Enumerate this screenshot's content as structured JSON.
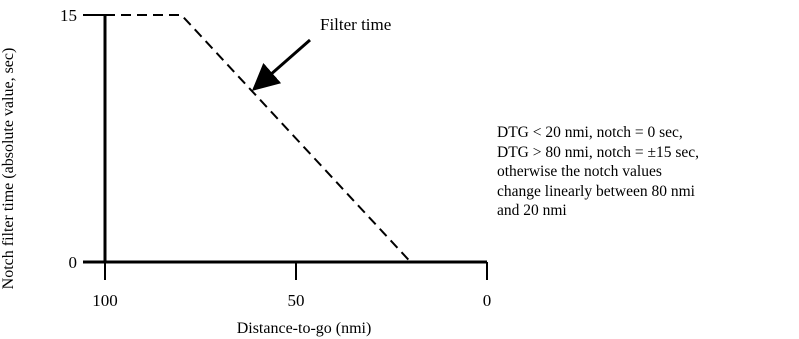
{
  "chart_data": {
    "type": "line",
    "title": "",
    "xlabel": "Distance-to-go (nmi)",
    "ylabel": "Notch filter time (absolute value, sec)",
    "xlim": [
      100,
      0
    ],
    "ylim": [
      0,
      15
    ],
    "x_reversed": true,
    "x_ticks": [
      100,
      50,
      0
    ],
    "x_tick_labels": [
      "100",
      "50",
      "0"
    ],
    "y_ticks": [
      0,
      15
    ],
    "y_tick_labels": [
      "0",
      "15"
    ],
    "grid": false,
    "series": [
      {
        "line_style": "dashed",
        "x": [
          100,
          80,
          20,
          0
        ],
        "y": [
          15,
          15,
          0,
          0
        ]
      }
    ],
    "annotations": [
      {
        "text": "Filter time",
        "arrow_target": {
          "x": 61,
          "y": 10.5
        }
      }
    ]
  },
  "note": {
    "lines": [
      "DTG < 20 nmi, notch = 0 sec,",
      "DTG > 80 nmi, notch = ±15 sec,",
      "otherwise the notch values",
      "change linearly between 80 nmi",
      "and 20 nmi"
    ]
  }
}
